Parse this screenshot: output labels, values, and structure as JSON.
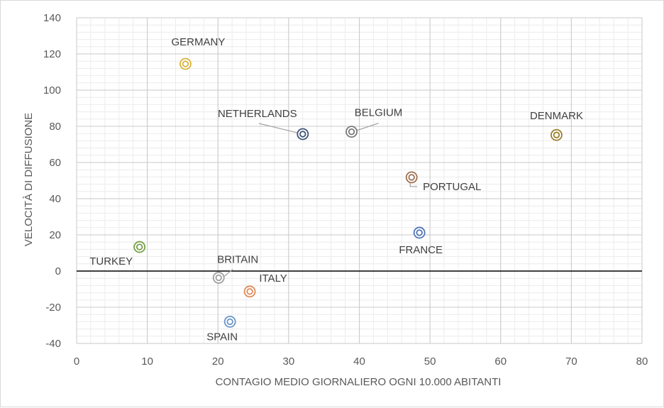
{
  "chart_data": {
    "type": "scatter",
    "xlabel": "CONTAGIO MEDIO GIORNALIERO OGNI 10.000 ABITANTI",
    "ylabel": "VELOCITÀ DI DIFFUSIONE",
    "xlim": [
      0,
      80
    ],
    "ylim": [
      -40,
      140
    ],
    "x_ticks": [
      "0",
      "10",
      "20",
      "30",
      "40",
      "50",
      "60",
      "70",
      "80"
    ],
    "y_ticks": [
      "-40",
      "-20",
      "0",
      "20",
      "40",
      "60",
      "80",
      "100",
      "120",
      "140"
    ],
    "grid": "major and minor",
    "negative_tick_color": "#e00000",
    "zero_line": true,
    "points": [
      {
        "label": "GERMANY",
        "x": 15.4,
        "y": 114.5,
        "color": "#d9b23a"
      },
      {
        "label": "NETHERLANDS",
        "x": 32.0,
        "y": 75.7,
        "color": "#3d5377"
      },
      {
        "label": "BELGIUM",
        "x": 38.9,
        "y": 77.0,
        "color": "#7a7a7a"
      },
      {
        "label": "DENMARK",
        "x": 67.9,
        "y": 75.2,
        "color": "#9c7f2e"
      },
      {
        "label": "PORTUGAL",
        "x": 47.4,
        "y": 51.8,
        "color": "#a06f52"
      },
      {
        "label": "FRANCE",
        "x": 48.5,
        "y": 21.2,
        "color": "#4f74b3"
      },
      {
        "label": "TURKEY",
        "x": 8.9,
        "y": 13.3,
        "color": "#76a049"
      },
      {
        "label": "BRITAIN",
        "x": 20.1,
        "y": -3.7,
        "color": "#9e9e9e"
      },
      {
        "label": "ITALY",
        "x": 24.5,
        "y": -11.3,
        "color": "#e0895a"
      },
      {
        "label": "SPAIN",
        "x": 21.7,
        "y": -28.0,
        "color": "#6a96c8"
      }
    ]
  }
}
